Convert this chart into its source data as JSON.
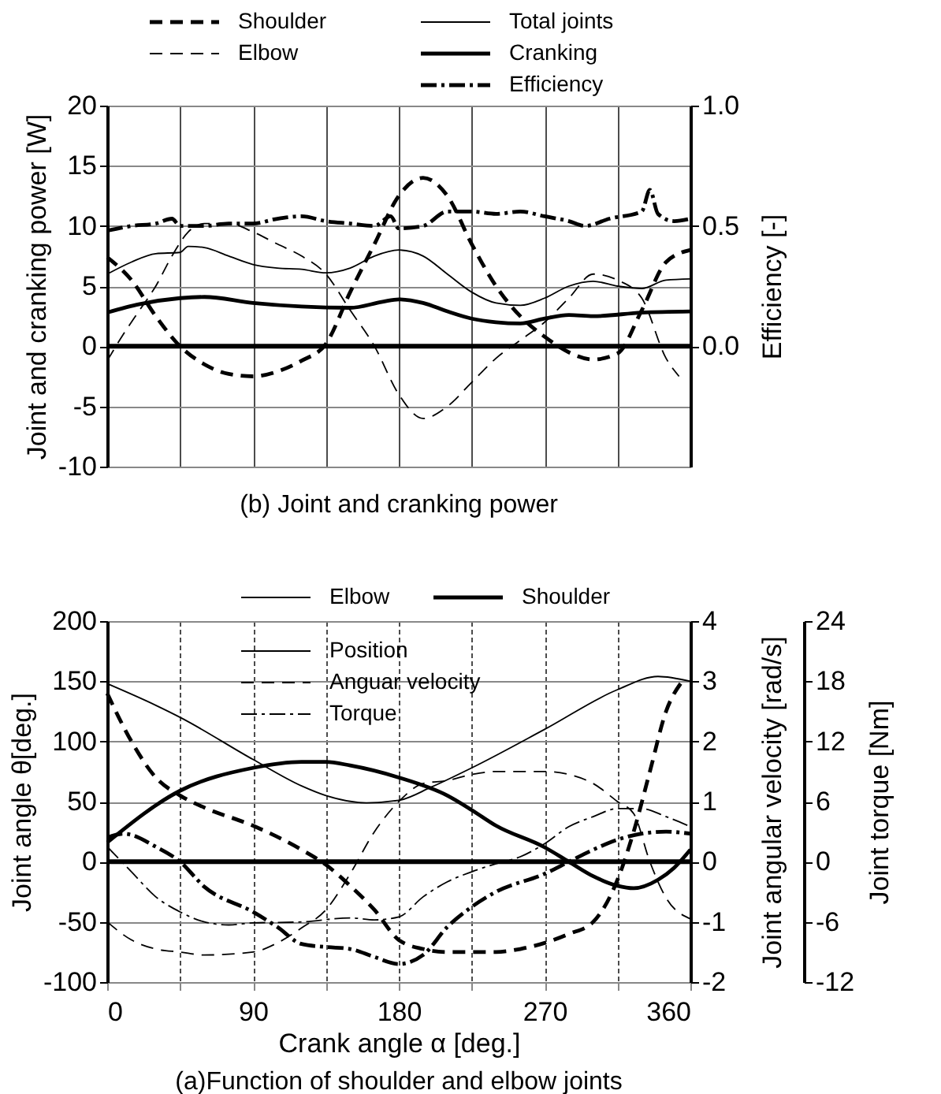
{
  "chart_data": [
    {
      "type": "line",
      "title": "(b) Joint and cranking power",
      "ylabel": "Joint and cranking power [W]",
      "y2label": "Efficiency [-]",
      "xlim": [
        0,
        360
      ],
      "xticks": [
        {
          "value": 0,
          "label": null
        },
        {
          "value": 45,
          "label": null
        },
        {
          "value": 90,
          "label": null
        },
        {
          "value": 135,
          "label": null
        },
        {
          "value": 180,
          "label": null
        },
        {
          "value": 225,
          "label": null
        },
        {
          "value": 270,
          "label": null
        },
        {
          "value": 315,
          "label": null
        },
        {
          "value": 360,
          "label": null
        }
      ],
      "ylim": [
        -10,
        20
      ],
      "yticks": [
        -10,
        -5,
        0,
        5,
        10,
        15,
        20
      ],
      "y2lim": [
        -0.5,
        1.0
      ],
      "y2ticks": [
        {
          "value": 0,
          "label": "0.0"
        },
        {
          "value": 0.5,
          "label": "0.5"
        },
        {
          "value": 1,
          "label": "1.0"
        }
      ],
      "tick_labels": "y",
      "grid": true,
      "legend": "top",
      "ref_lines": [
        {
          "axis": "y",
          "value": 0,
          "color": "#000000"
        }
      ],
      "series": [
        {
          "name": "Shoulder",
          "color": "#000000",
          "line_style": "dashed",
          "x": [
            0,
            15,
            30,
            45,
            60,
            75,
            90,
            105,
            120,
            135,
            150,
            165,
            180,
            195,
            210,
            225,
            240,
            255,
            270,
            285,
            300,
            315,
            330,
            345,
            360
          ],
          "values": [
            7.4,
            5.5,
            2.5,
            0,
            -1.5,
            -2.3,
            -2.5,
            -2.1,
            -1.2,
            0.2,
            4.5,
            8.5,
            12.5,
            14,
            12.5,
            8.5,
            5,
            2.5,
            0.8,
            -0.5,
            -1.1,
            -0.6,
            3,
            7,
            8
          ]
        },
        {
          "name": "Elbow",
          "color": "#000000",
          "line_style": "dashed",
          "x": [
            0,
            10,
            20,
            30,
            40,
            50,
            60,
            75,
            90,
            105,
            120,
            135,
            150,
            165,
            180,
            195,
            210,
            225,
            240,
            255,
            270,
            285,
            300,
            315,
            330,
            345,
            353
          ],
          "values": [
            -1.2,
            1,
            3,
            5,
            7.5,
            9.5,
            10.2,
            10.2,
            9.5,
            8.5,
            7.5,
            6,
            3,
            0,
            -4,
            -6,
            -5,
            -3,
            -1,
            0.5,
            2,
            4,
            6,
            5.5,
            4,
            -1,
            -2.5
          ]
        },
        {
          "name": "Total joints",
          "color": "#000000",
          "line_style": "solid",
          "x": [
            0,
            15,
            30,
            45,
            50,
            60,
            75,
            90,
            105,
            120,
            135,
            150,
            165,
            180,
            195,
            210,
            225,
            240,
            255,
            270,
            285,
            300,
            315,
            330,
            345,
            360
          ],
          "values": [
            6,
            7,
            7.7,
            7.8,
            8.3,
            8.2,
            7.5,
            6.8,
            6.5,
            6.4,
            6.1,
            6.5,
            7.5,
            8,
            7.5,
            6,
            4.5,
            3.6,
            3.4,
            4,
            5,
            5.4,
            5,
            4.8,
            5.5,
            5.6
          ]
        },
        {
          "name": "Cranking",
          "color": "#000000",
          "line_style": "solid",
          "x": [
            0,
            20,
            45,
            60,
            90,
            120,
            150,
            170,
            180,
            195,
            210,
            225,
            240,
            255,
            270,
            285,
            300,
            330,
            360
          ],
          "values": [
            2.8,
            3.5,
            4,
            4.1,
            3.6,
            3.3,
            3.2,
            3.7,
            3.9,
            3.6,
            2.9,
            2.3,
            2,
            1.9,
            2.3,
            2.6,
            2.5,
            2.8,
            2.9
          ]
        },
        {
          "name": "Efficiency",
          "color": "#000000",
          "line_style": "dashdot",
          "axis": "y2",
          "x": [
            0,
            15,
            30,
            40,
            45,
            60,
            75,
            90,
            105,
            120,
            135,
            150,
            165,
            175,
            180,
            195,
            210,
            225,
            240,
            255,
            270,
            285,
            295,
            310,
            330,
            335,
            340,
            350,
            360
          ],
          "values": [
            0.48,
            0.5,
            0.51,
            0.53,
            0.5,
            0.5,
            0.51,
            0.51,
            0.53,
            0.54,
            0.52,
            0.51,
            0.5,
            0.54,
            0.49,
            0.5,
            0.56,
            0.56,
            0.55,
            0.56,
            0.54,
            0.52,
            0.5,
            0.53,
            0.56,
            0.65,
            0.55,
            0.52,
            0.53
          ]
        }
      ]
    },
    {
      "type": "line",
      "title": "(a)Function of shoulder and elbow joints",
      "xlabel": "Crank angle α [deg.]",
      "ylabel": "Joint angle θ[deg.]",
      "y2label": "Joint angular velocity [rad/s]",
      "y3label": "Joint torque [Nm]",
      "annotations": [
        "Position"
      ],
      "xlim": [
        0,
        360
      ],
      "xticks": [
        0,
        {
          "value": 45,
          "label": null
        },
        90,
        {
          "value": 135,
          "label": null
        },
        180,
        {
          "value": 225,
          "label": null
        },
        270,
        {
          "value": 315,
          "label": null
        },
        360
      ],
      "ylim": [
        -100,
        200
      ],
      "yticks": [
        -100,
        -50,
        0,
        50,
        100,
        150,
        200
      ],
      "y2lim": [
        -2,
        4
      ],
      "y2ticks": [
        -2,
        -1,
        0,
        1,
        2,
        3,
        4
      ],
      "y3lim": [
        -12,
        24
      ],
      "y3ticks": [
        -12,
        -6,
        0,
        6,
        12,
        18,
        24
      ],
      "grid": true,
      "legend": "top",
      "ref_lines": [
        {
          "axis": "y",
          "value": 0,
          "color": "#000000"
        }
      ],
      "series": [
        {
          "name": "Elbow",
          "color": "#000000",
          "line_style": "solid",
          "x": [
            0,
            30,
            45,
            90,
            120,
            135,
            160,
            180,
            200,
            225,
            270,
            315,
            340,
            360
          ],
          "values": [
            148,
            130,
            120,
            85,
            63,
            55,
            49,
            51,
            62,
            78,
            110,
            143,
            154,
            150
          ]
        },
        {
          "name": "Shoulder",
          "color": "#000000",
          "line_style": "solid",
          "x": [
            0,
            45,
            90,
            120,
            135,
            150,
            180,
            210,
            225,
            240,
            270,
            285,
            300,
            315,
            325,
            340,
            350,
            360
          ],
          "values": [
            16,
            59,
            78,
            83,
            83,
            80,
            70,
            55,
            43,
            30,
            12,
            0,
            -12,
            -20,
            -22,
            -15,
            -5,
            10
          ]
        },
        {
          "name": "Anguar velocity",
          "color": "#000000",
          "line_style": "dashed",
          "axis": "y2",
          "x": [
            0,
            15,
            30,
            45,
            60,
            90,
            105,
            120,
            135,
            150,
            165,
            180,
            195,
            210,
            225,
            240,
            270,
            285,
            300,
            315,
            325,
            335,
            345,
            360
          ],
          "values": [
            -1.0,
            -1.3,
            -1.45,
            -1.5,
            -1.55,
            -1.5,
            -1.35,
            -1.1,
            -0.8,
            -0.2,
            0.5,
            1.0,
            1.3,
            1.35,
            1.45,
            1.5,
            1.5,
            1.45,
            1.3,
            1.0,
            0.8,
            0.0,
            -0.6,
            -0.95
          ]
        },
        {
          "color": "#000000",
          "line_style": "dashed",
          "axis": "y2",
          "x": [
            0,
            15,
            30,
            45,
            60,
            90,
            120,
            135,
            150,
            165,
            180,
            195,
            210,
            225,
            240,
            255,
            270,
            285,
            300,
            315,
            325,
            335,
            345,
            355
          ],
          "values": [
            2.8,
            2.0,
            1.4,
            1.1,
            0.9,
            0.6,
            0.2,
            -0.05,
            -0.4,
            -0.8,
            -1.3,
            -1.45,
            -1.5,
            -1.5,
            -1.5,
            -1.45,
            -1.35,
            -1.2,
            -1.0,
            -0.3,
            0.5,
            1.5,
            2.5,
            3.0
          ]
        },
        {
          "name": "Torque",
          "color": "#000000",
          "line_style": "dashdot",
          "axis": "y3",
          "x": [
            0,
            15,
            30,
            45,
            60,
            75,
            90,
            120,
            150,
            165,
            180,
            195,
            210,
            225,
            240,
            255,
            270,
            285,
            300,
            315,
            330,
            345,
            360
          ],
          "values": [
            1.5,
            -1,
            -3.5,
            -5,
            -6,
            -6.3,
            -6.1,
            -6,
            -5.6,
            -5.8,
            -5.5,
            -3.5,
            -2,
            -1,
            -0.2,
            0.5,
            1.8,
            3.5,
            4.5,
            5.3,
            5.3,
            4.5,
            3.5
          ]
        },
        {
          "color": "#000000",
          "line_style": "dashdot",
          "axis": "y3",
          "x": [
            0,
            10,
            30,
            45,
            60,
            90,
            105,
            120,
            135,
            150,
            165,
            180,
            195,
            210,
            225,
            240,
            270,
            285,
            300,
            315,
            330,
            345,
            360
          ],
          "values": [
            2.4,
            2.8,
            1.5,
            0,
            -2.5,
            -5,
            -6.5,
            -8.2,
            -8.5,
            -8.7,
            -9.5,
            -10.2,
            -9.3,
            -6.5,
            -4.5,
            -3,
            -1.2,
            0,
            1.2,
            2.2,
            2.8,
            3.0,
            2.8
          ]
        }
      ]
    }
  ]
}
